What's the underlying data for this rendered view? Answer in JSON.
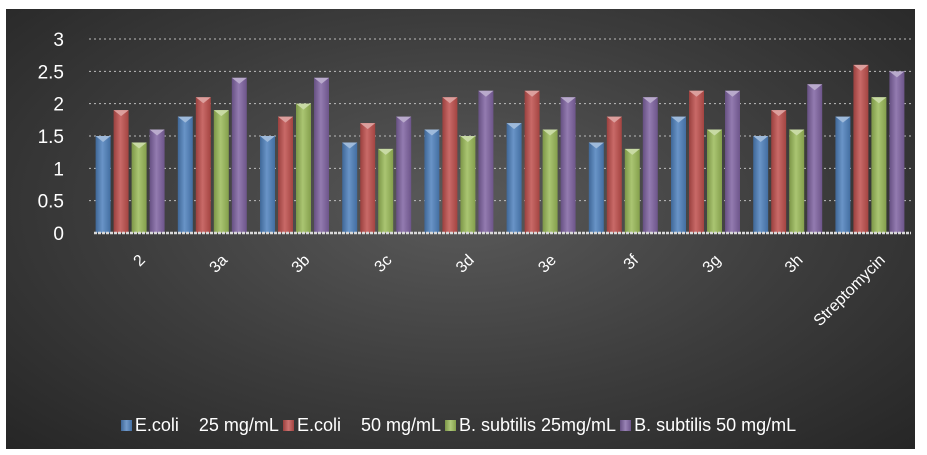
{
  "chart_data": {
    "type": "bar",
    "title": "",
    "xlabel": "",
    "ylabel": "",
    "ylim": [
      0,
      3
    ],
    "yticks": [
      "0",
      "0.5",
      "1",
      "1.5",
      "2",
      "2.5",
      "3"
    ],
    "grid": "horizontal-dotted",
    "legend_position": "bottom",
    "categories": [
      "2",
      "3a",
      "3b",
      "3c",
      "3d",
      "3e",
      "3f",
      "3g",
      "3h",
      "Streptomycin"
    ],
    "series": [
      {
        "name": "E.coli    25 mg/mL",
        "color": "#4f81bd",
        "values": [
          1.5,
          1.8,
          1.5,
          1.4,
          1.6,
          1.7,
          1.4,
          1.8,
          1.5,
          1.8
        ]
      },
      {
        "name": "E.coli    50 mg/mL",
        "color": "#c0504d",
        "values": [
          1.9,
          2.1,
          1.8,
          1.7,
          2.1,
          2.2,
          1.8,
          2.2,
          1.9,
          2.6
        ]
      },
      {
        "name": "B. subtilis 25mg/mL",
        "color": "#9bbb59",
        "values": [
          1.4,
          1.9,
          2.0,
          1.3,
          1.5,
          1.6,
          1.3,
          1.6,
          1.6,
          2.1
        ]
      },
      {
        "name": "B. subtilis 50 mg/mL",
        "color": "#8064a2",
        "values": [
          1.6,
          2.4,
          2.4,
          1.8,
          2.2,
          2.1,
          2.1,
          2.2,
          2.3,
          2.5
        ]
      }
    ]
  }
}
